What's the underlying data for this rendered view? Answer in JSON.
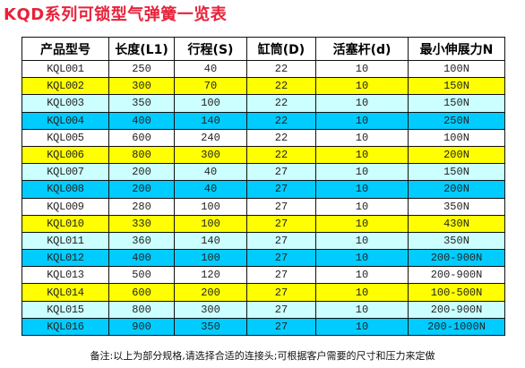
{
  "title": "KQD系列可锁型气弹簧一览表",
  "colors": {
    "title": "#e8213a",
    "row_white": "#ffffff",
    "row_yellow": "#ffff00",
    "row_cyan": "#ccffff",
    "row_blue": "#00ccff",
    "border": "#111111"
  },
  "table": {
    "headers": [
      "产品型号",
      "长度(L1)",
      "行程(S)",
      "缸筒(D)",
      "活塞杆(d)",
      "最小伸展力N"
    ],
    "rows": [
      {
        "color": "white",
        "cells": [
          "KQL001",
          "250",
          "40",
          "22",
          "10",
          "100N"
        ]
      },
      {
        "color": "yellow",
        "cells": [
          "KQL002",
          "300",
          "70",
          "22",
          "10",
          "150N"
        ]
      },
      {
        "color": "cyan",
        "cells": [
          "KQL003",
          "350",
          "100",
          "22",
          "10",
          "150N"
        ]
      },
      {
        "color": "blue",
        "cells": [
          "KQL004",
          "400",
          "140",
          "22",
          "10",
          "250N"
        ]
      },
      {
        "color": "white",
        "cells": [
          "KQL005",
          "600",
          "240",
          "22",
          "10",
          "100N"
        ]
      },
      {
        "color": "yellow",
        "cells": [
          "KQL006",
          "800",
          "300",
          "22",
          "10",
          "200N"
        ]
      },
      {
        "color": "cyan",
        "cells": [
          "KQL007",
          "200",
          "40",
          "27",
          "10",
          "150N"
        ]
      },
      {
        "color": "blue",
        "cells": [
          "KQL008",
          "200",
          "40",
          "27",
          "10",
          "200N"
        ]
      },
      {
        "color": "white",
        "cells": [
          "KQL009",
          "280",
          "100",
          "27",
          "10",
          "350N"
        ]
      },
      {
        "color": "yellow",
        "cells": [
          "KQL010",
          "330",
          "100",
          "27",
          "10",
          "430N"
        ]
      },
      {
        "color": "cyan",
        "cells": [
          "KQL011",
          "360",
          "140",
          "27",
          "10",
          "350N"
        ]
      },
      {
        "color": "blue",
        "cells": [
          "KQL012",
          "400",
          "100",
          "27",
          "10",
          "200-900N"
        ]
      },
      {
        "color": "white",
        "cells": [
          "KQL013",
          "500",
          "120",
          "27",
          "10",
          "200-900N"
        ]
      },
      {
        "color": "yellow",
        "cells": [
          "KQL014",
          "600",
          "200",
          "27",
          "10",
          "100-500N"
        ]
      },
      {
        "color": "cyan",
        "cells": [
          "KQL015",
          "800",
          "300",
          "27",
          "10",
          "200-900N"
        ]
      },
      {
        "color": "blue",
        "cells": [
          "KQL016",
          "900",
          "350",
          "27",
          "10",
          "200-1000N"
        ]
      }
    ]
  },
  "note": "备注:以上为部分规格,请选择合适的连接头;可根据客户需要的尺寸和压力来定做"
}
